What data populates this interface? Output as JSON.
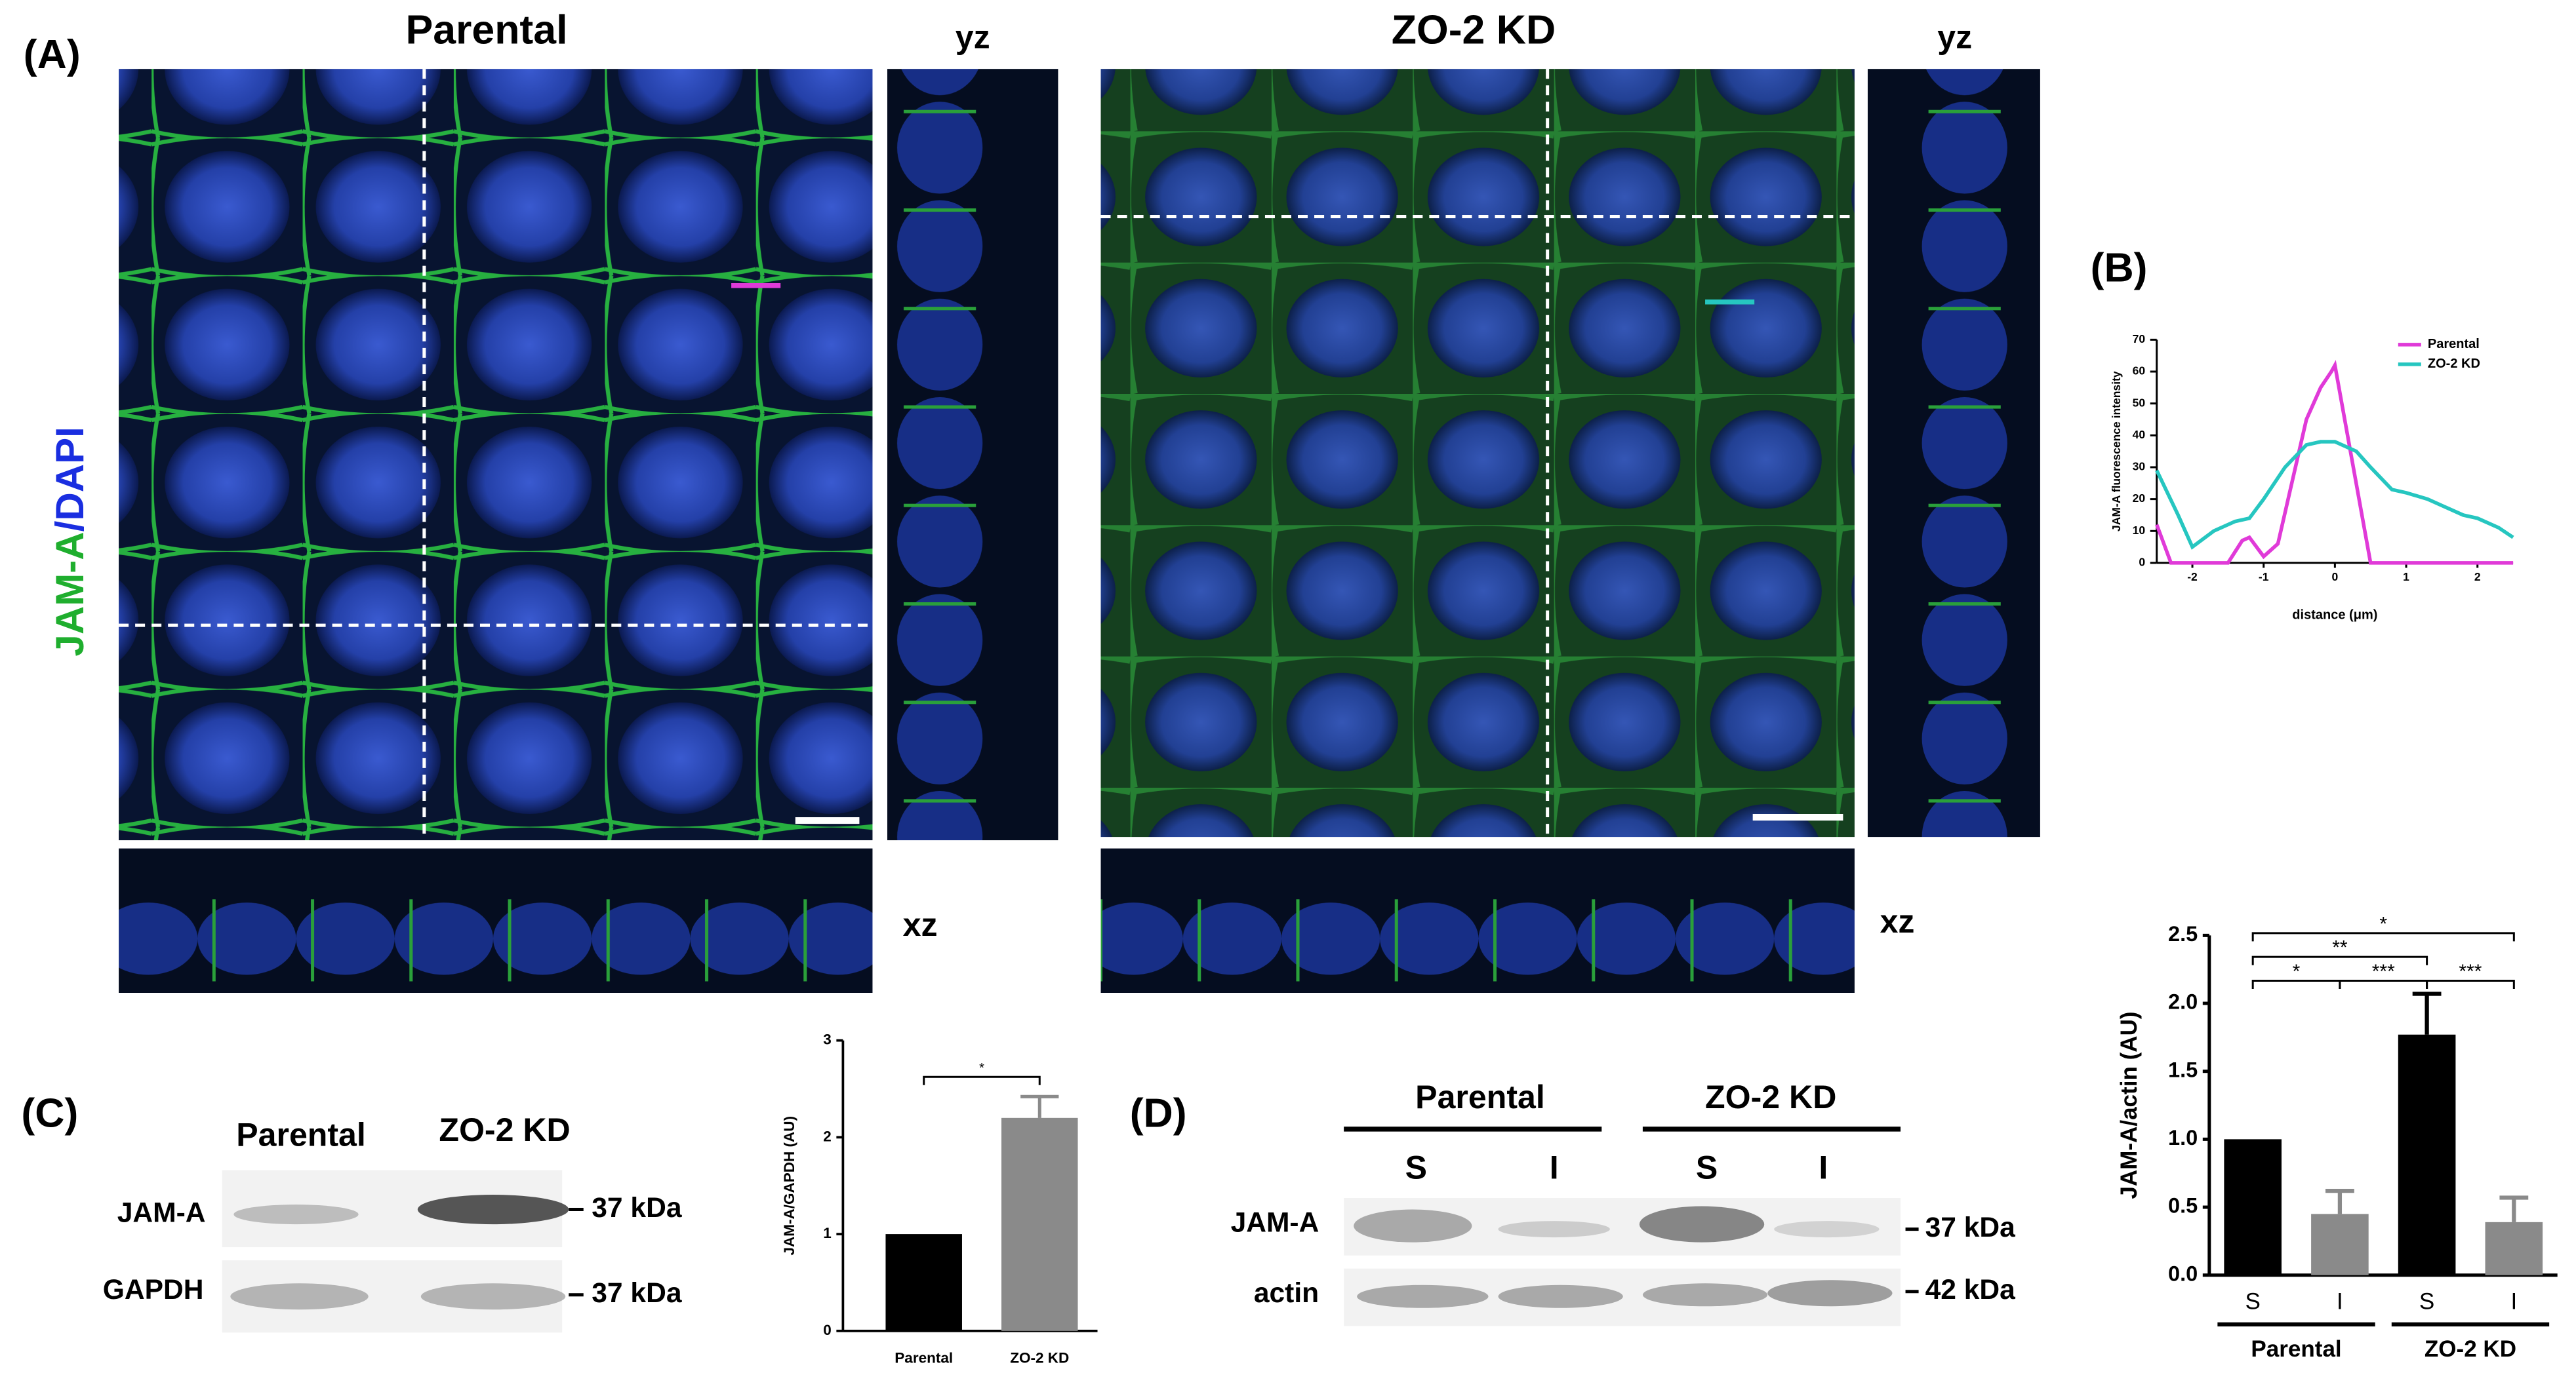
{
  "panels": {
    "A": {
      "label": "(A)",
      "stain_green": "JAM-A",
      "stain_blue": "/DAPI",
      "conditions": [
        {
          "title": "Parental",
          "yz": "yz",
          "xz": "xz"
        },
        {
          "title": "ZO-2 KD",
          "yz": "yz",
          "xz": "xz"
        }
      ]
    },
    "B": {
      "label": "(B)"
    },
    "C": {
      "label": "(C)",
      "lanes": [
        "Parental",
        "ZO-2 KD"
      ],
      "rows": [
        "JAM-A",
        "GAPDH"
      ],
      "sizes": [
        "37 kDa",
        "37 kDa"
      ]
    },
    "D": {
      "label": "(D)",
      "groups": [
        "Parental",
        "ZO-2 KD"
      ],
      "lanes": [
        "S",
        "I",
        "S",
        "I"
      ],
      "rows": [
        "JAM-A",
        "actin"
      ],
      "sizes": [
        "37 kDa",
        "42 kDa"
      ]
    }
  },
  "chart_data": [
    {
      "type": "line",
      "xlabel": "distance (μm)",
      "ylabel": "JAM-A fluorescence intensity",
      "xlim": [
        -2.5,
        2.5
      ],
      "xticks": [
        -2,
        -1,
        0,
        1,
        2
      ],
      "ylim": [
        0,
        70
      ],
      "yticks": [
        0,
        10,
        20,
        30,
        40,
        50,
        60,
        70
      ],
      "legend": "top-right",
      "series": [
        {
          "name": "Parental",
          "color": "#e03ad8",
          "x": [
            -2.5,
            -2.3,
            -1.5,
            -1.3,
            -1.2,
            -1.0,
            -0.8,
            -0.4,
            -0.2,
            -0.05,
            0,
            0.5,
            2.5
          ],
          "values": [
            12,
            0,
            0,
            7,
            8,
            2,
            6,
            45,
            55,
            60,
            62,
            0,
            0
          ]
        },
        {
          "name": "ZO-2 KD",
          "color": "#26c6c0",
          "x": [
            -2.5,
            -2.2,
            -2.0,
            -1.7,
            -1.4,
            -1.2,
            -1.0,
            -0.7,
            -0.4,
            -0.2,
            0,
            0.3,
            0.5,
            0.8,
            1.0,
            1.3,
            1.5,
            1.8,
            2.0,
            2.3,
            2.5
          ],
          "values": [
            29,
            15,
            5,
            10,
            13,
            14,
            20,
            30,
            37,
            38,
            38,
            35,
            30,
            23,
            22,
            20,
            18,
            15,
            14,
            11,
            8
          ]
        }
      ]
    },
    {
      "type": "bar",
      "ylabel": "JAM-A/GAPDH (AU)",
      "categories": [
        "Parental",
        "ZO-2 KD"
      ],
      "values": [
        1,
        2.2
      ],
      "errors": [
        null,
        0.22
      ],
      "colors": [
        "#000000",
        "#8a8a8a"
      ],
      "ylim": [
        0,
        3
      ],
      "yticks": [
        0,
        1,
        2,
        3
      ],
      "significance": [
        {
          "label": "*",
          "pair": [
            0,
            1
          ]
        }
      ]
    },
    {
      "type": "bar",
      "ylabel": "JAM-A/actin (AU)",
      "categories": [
        "S",
        "I",
        "S",
        "I"
      ],
      "values": [
        1.0,
        0.45,
        1.77,
        0.39
      ],
      "errors": [
        null,
        0.17,
        0.3,
        0.18
      ],
      "colors": [
        "#000000",
        "#8a8a8a",
        "#000000",
        "#8a8a8a"
      ],
      "ylim": [
        0,
        2.5
      ],
      "yticks": [
        {
          "value": 0,
          "label": "0.0"
        },
        0.5,
        {
          "value": 1,
          "label": "1.0"
        },
        1.5,
        {
          "value": 2,
          "label": "2.0"
        },
        2.5
      ],
      "groups": [
        {
          "name": "Parental",
          "members": [
            0,
            1
          ]
        },
        {
          "name": "ZO-2 KD",
          "members": [
            2,
            3
          ]
        }
      ],
      "significance": [
        {
          "label": "*",
          "pair": [
            0,
            3
          ]
        },
        {
          "label": "**",
          "pair": [
            0,
            2
          ]
        },
        {
          "label": "*",
          "pair": [
            0,
            1
          ]
        },
        {
          "label": "***",
          "pair": [
            1,
            2
          ]
        },
        {
          "label": "***",
          "pair": [
            2,
            3
          ]
        }
      ]
    }
  ]
}
